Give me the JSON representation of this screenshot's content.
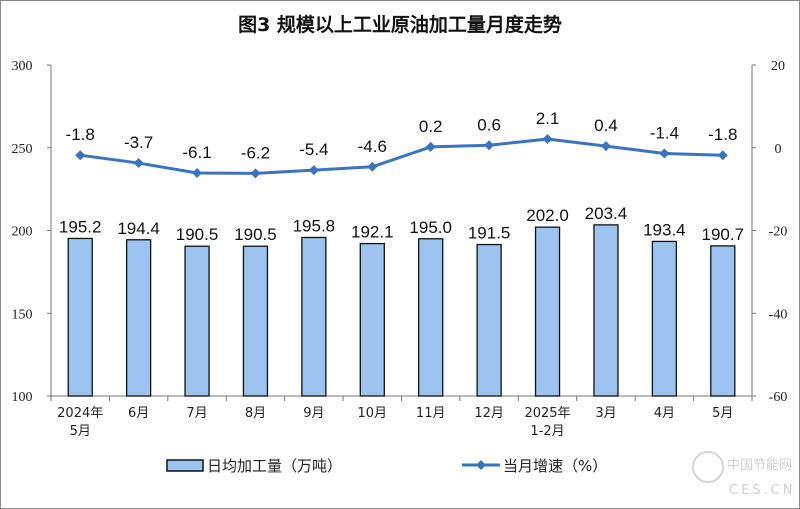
{
  "chart_data": {
    "type": "bar+line",
    "title": "图3  规模以上工业原油加工量月度走势",
    "categories": [
      "2024年\n5月",
      "6月",
      "7月",
      "8月",
      "9月",
      "10月",
      "11月",
      "12月",
      "2025年\n1-2月",
      "3月",
      "4月",
      "5月"
    ],
    "series": [
      {
        "name": "日均加工量（万吨）",
        "type": "bar",
        "axis": "left",
        "color": "#9dc3f0",
        "values": [
          195.2,
          194.4,
          190.5,
          190.5,
          195.8,
          192.1,
          195.0,
          191.5,
          202.0,
          203.4,
          193.4,
          190.7
        ]
      },
      {
        "name": "当月增速（%）",
        "type": "line",
        "axis": "right",
        "color": "#3a74c0",
        "marker": "diamond",
        "values": [
          -1.8,
          -3.7,
          -6.1,
          -6.2,
          -5.4,
          -4.6,
          0.2,
          0.6,
          2.1,
          0.4,
          -1.4,
          -1.8
        ]
      }
    ],
    "left_axis": {
      "ylim": [
        100,
        300
      ],
      "ticks": [
        "100",
        "150",
        "200",
        "250",
        "300"
      ]
    },
    "right_axis": {
      "ylim": [
        -60,
        20
      ],
      "ticks": [
        "-60",
        "-40",
        "-20",
        "0",
        "20"
      ]
    },
    "grid": false,
    "legend": "bottom"
  },
  "watermark": {
    "text": "中国节能网",
    "sub": "CES.CN"
  }
}
